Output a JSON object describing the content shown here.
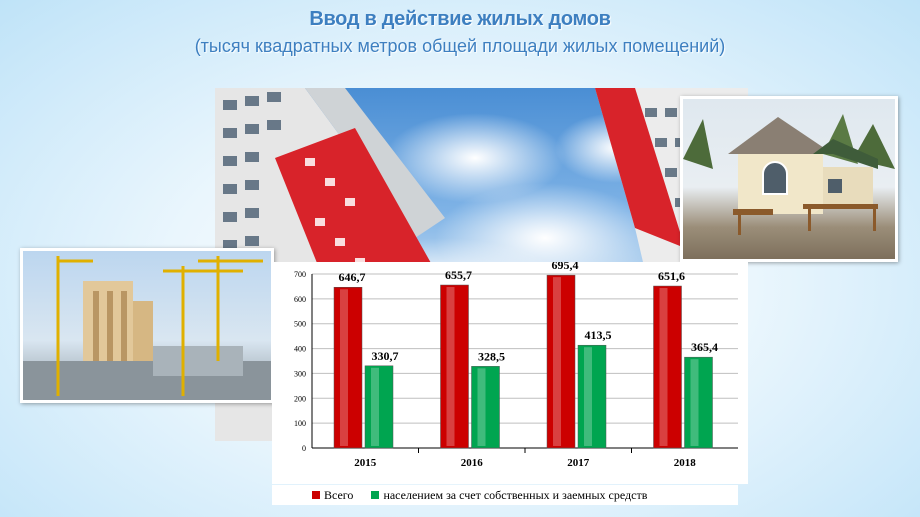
{
  "header": {
    "title": "Ввод в действие жилых домов",
    "subtitle": "(тысяч квадратных метров общей площади жилых помещений)"
  },
  "colors": {
    "series1": "#cc0000",
    "series2": "#00a550",
    "title": "#3d7fc0"
  },
  "chart_data": {
    "type": "bar",
    "categories": [
      "2015",
      "2016",
      "2017",
      "2018"
    ],
    "series": [
      {
        "name": "Всего",
        "values": [
          646.7,
          655.7,
          695.4,
          651.6
        ],
        "labels": [
          "646,7",
          "655,7",
          "695,4",
          "651,6"
        ]
      },
      {
        "name": "населением за счет собственных и заемных средств",
        "values": [
          330.7,
          328.5,
          413.5,
          365.4
        ],
        "labels": [
          "330,7",
          "328,5",
          "413,5",
          "365,4"
        ]
      }
    ],
    "yticks": [
      0,
      100,
      200,
      300,
      400,
      500,
      600,
      700
    ],
    "ylim": [
      0,
      700
    ],
    "grid": true,
    "legend": "bottom"
  }
}
